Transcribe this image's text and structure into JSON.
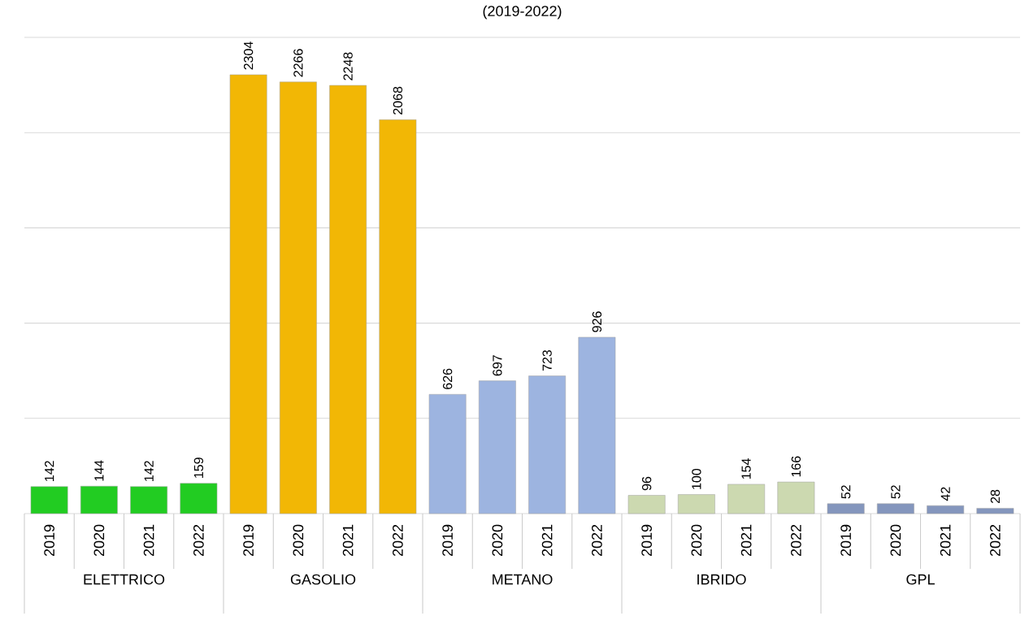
{
  "chart_data": {
    "type": "bar",
    "title": "(2019-2022)",
    "categories": [
      "2019",
      "2020",
      "2021",
      "2022",
      "2019",
      "2020",
      "2021",
      "2022",
      "2019",
      "2020",
      "2021",
      "2022",
      "2019",
      "2020",
      "2021",
      "2022",
      "2019",
      "2020",
      "2021",
      "2022"
    ],
    "values": [
      142,
      144,
      142,
      159,
      2304,
      2266,
      2248,
      2068,
      626,
      697,
      723,
      926,
      96,
      100,
      154,
      166,
      52,
      52,
      42,
      28
    ],
    "colors": [
      "#22cc22",
      "#22cc22",
      "#22cc22",
      "#22cc22",
      "#f2b705",
      "#f2b705",
      "#f2b705",
      "#f2b705",
      "#9db4e0",
      "#9db4e0",
      "#9db4e0",
      "#9db4e0",
      "#ccd9b0",
      "#ccd9b0",
      "#ccd9b0",
      "#ccd9b0",
      "#8496bd",
      "#8496bd",
      "#8496bd",
      "#8496bd"
    ],
    "annotations": [
      "ELETTRICO",
      "GASOLIO",
      "METANO",
      "IBRIDO",
      "GPL"
    ],
    "ylim": [
      0,
      2500
    ],
    "yticks": [
      {
        "value": 0,
        "label": null
      },
      {
        "value": 500,
        "label": null
      },
      {
        "value": 1000,
        "label": null
      },
      {
        "value": 1500,
        "label": null
      },
      {
        "value": 2000,
        "label": null
      },
      {
        "value": 2500,
        "label": null
      }
    ],
    "grid": "y",
    "tick_labels": "x",
    "data_labels": true
  }
}
